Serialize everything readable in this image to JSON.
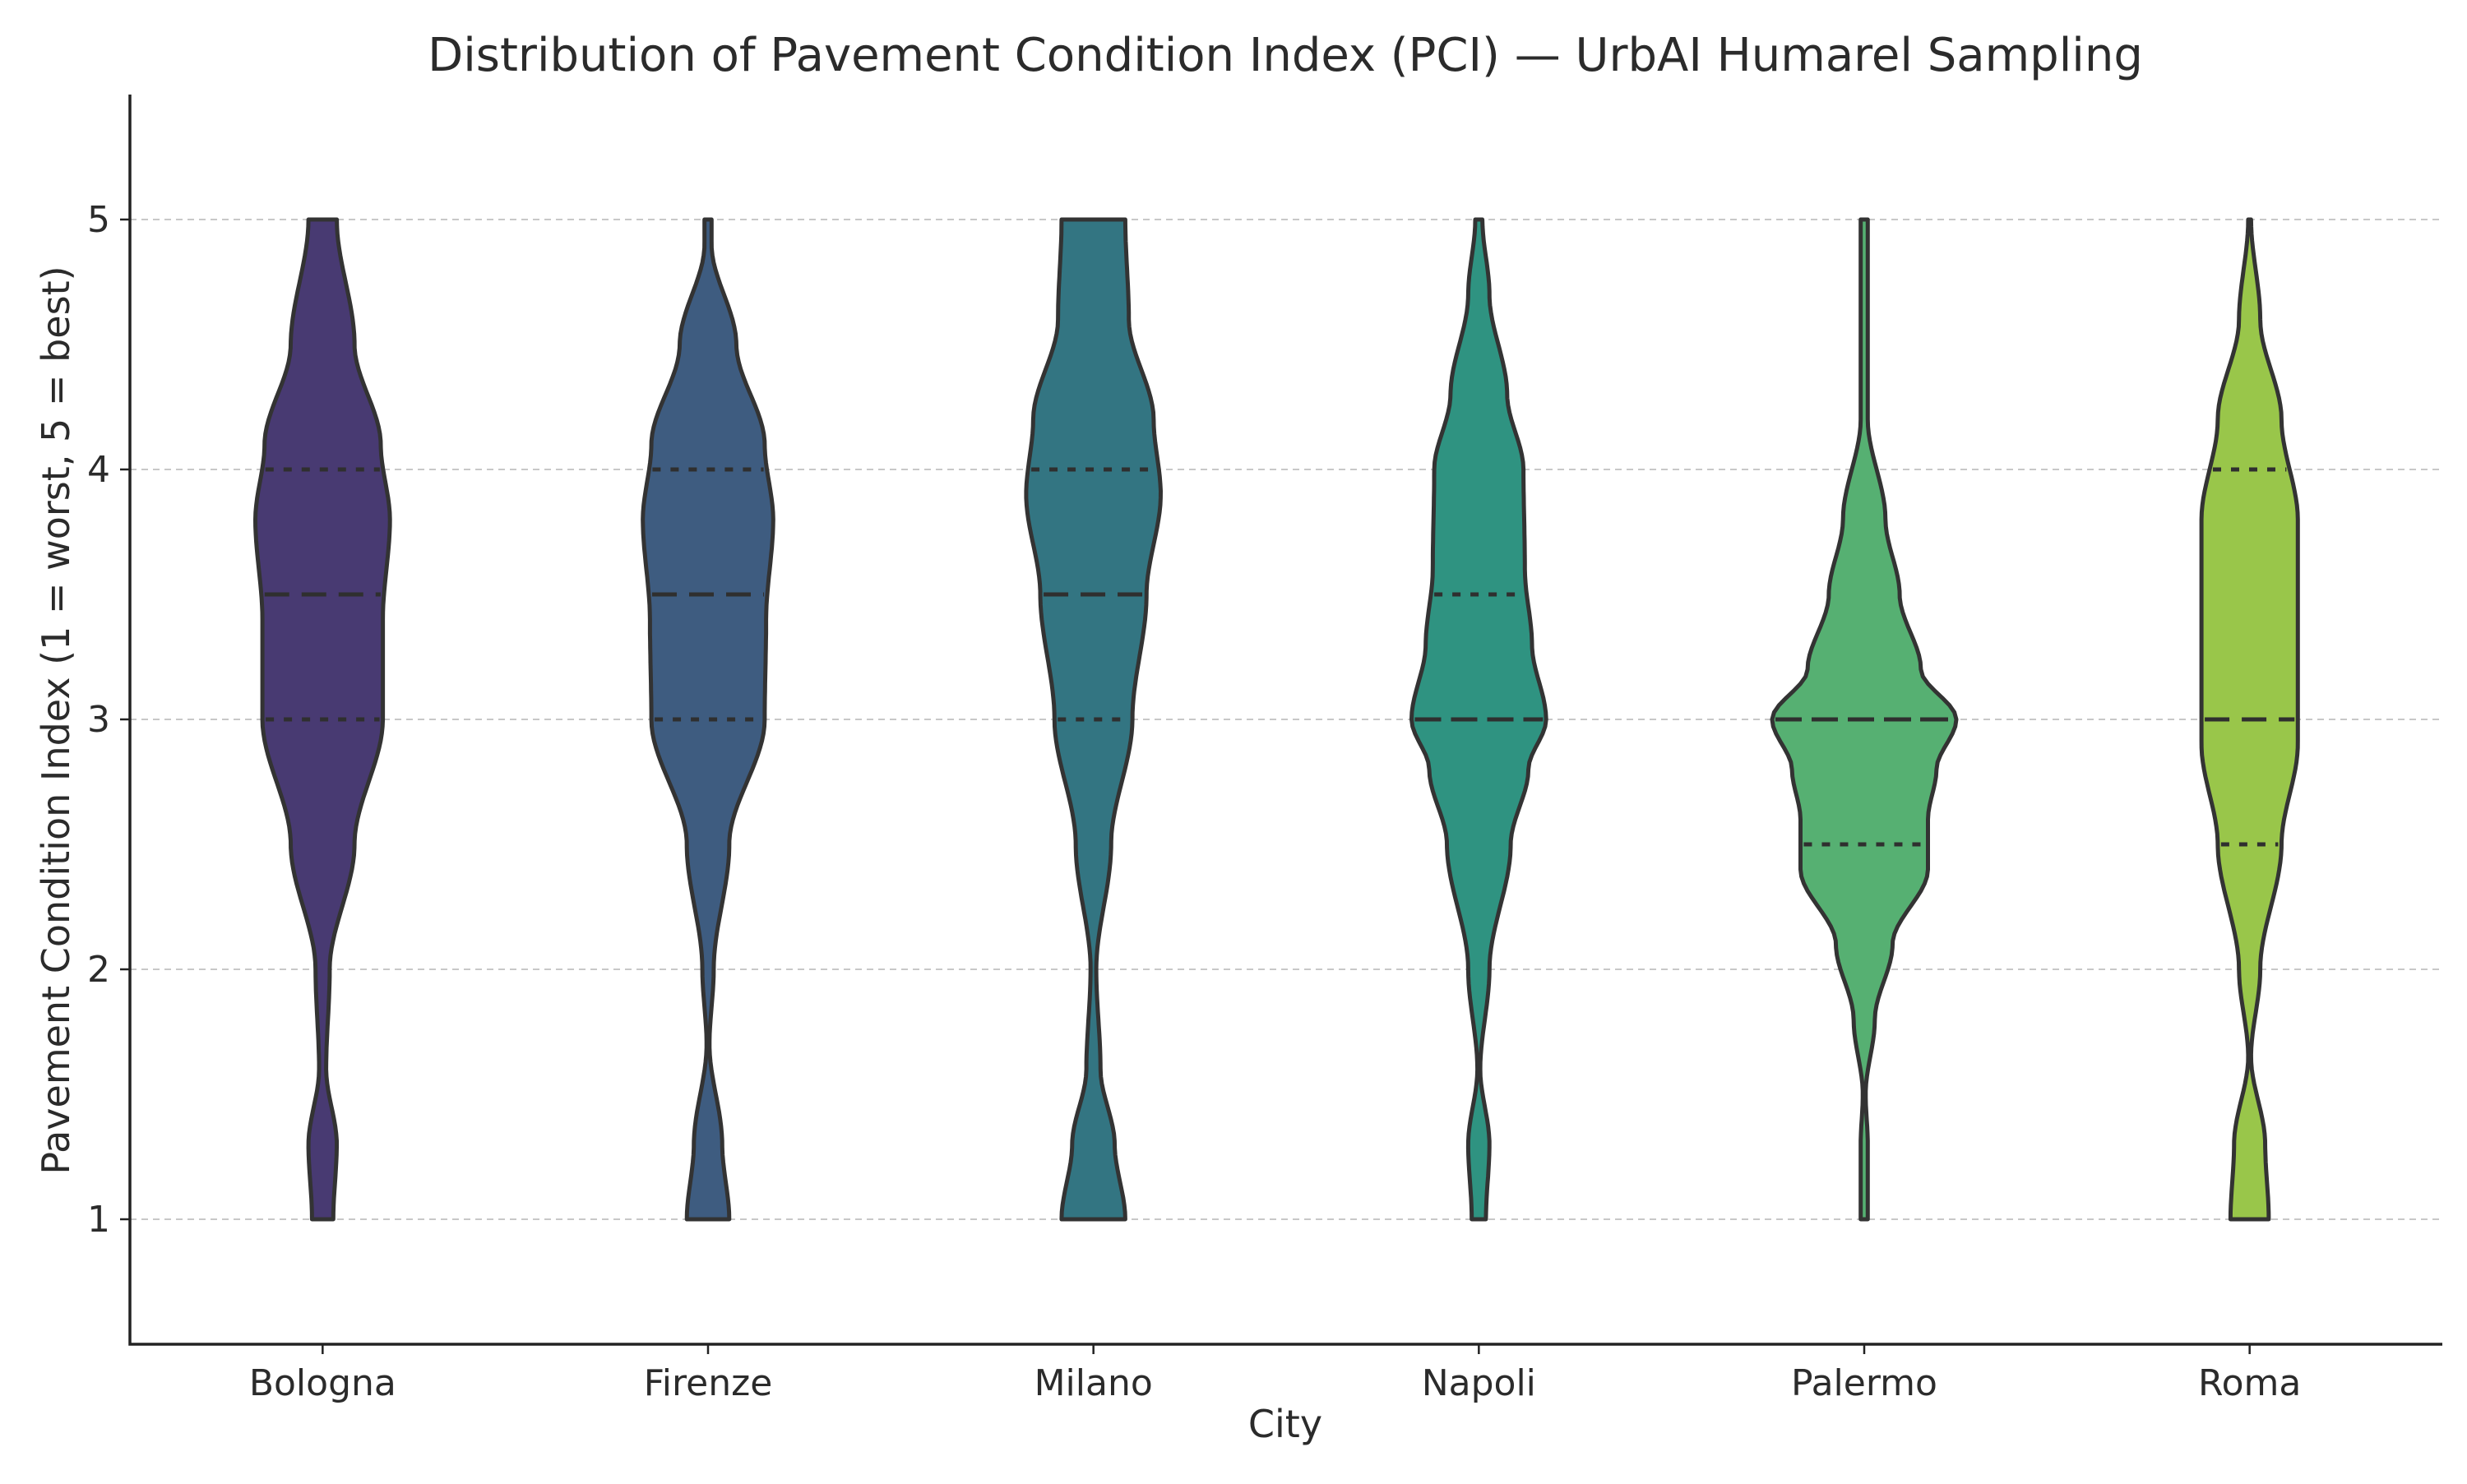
{
  "chart_data": {
    "type": "violin",
    "title": "Distribution of Pavement Condition Index (PCI) — UrbAI Humarel Sampling",
    "xlabel": "City",
    "ylabel": "Pavement Condition Index (1 = worst, 5 = best)",
    "ylim": [
      0.5,
      5.5
    ],
    "yticks": [
      "1",
      "2",
      "3",
      "4",
      "5"
    ],
    "grid": "y-dashed",
    "categories": [
      "Bologna",
      "Firenze",
      "Milano",
      "Napoli",
      "Palermo",
      "Roma"
    ],
    "colors": [
      "#483a72",
      "#3e5c80",
      "#337582",
      "#2f9381",
      "#56b072",
      "#99c64a"
    ],
    "series": [
      {
        "q1": 3.0,
        "median": 3.5,
        "q3": 4.0,
        "min": 1,
        "max": 5,
        "profile": [
          [
            1.0,
            0.15
          ],
          [
            1.3,
            0.2
          ],
          [
            1.6,
            0.05
          ],
          [
            2.0,
            0.1
          ],
          [
            2.5,
            0.45
          ],
          [
            3.0,
            0.85
          ],
          [
            3.4,
            0.85
          ],
          [
            3.8,
            0.95
          ],
          [
            4.1,
            0.82
          ],
          [
            4.5,
            0.45
          ],
          [
            5.0,
            0.2
          ]
        ]
      },
      {
        "q1": 3.0,
        "median": 3.5,
        "q3": 4.0,
        "min": 1,
        "max": 5,
        "profile": [
          [
            1.0,
            0.3
          ],
          [
            1.3,
            0.2
          ],
          [
            1.7,
            0.02
          ],
          [
            2.0,
            0.08
          ],
          [
            2.5,
            0.3
          ],
          [
            3.0,
            0.8
          ],
          [
            3.4,
            0.82
          ],
          [
            3.8,
            0.92
          ],
          [
            4.1,
            0.8
          ],
          [
            4.5,
            0.4
          ],
          [
            4.9,
            0.05
          ],
          [
            5.0,
            0.05
          ]
        ]
      },
      {
        "q1": 3.0,
        "median": 3.5,
        "q3": 4.0,
        "min": 1,
        "max": 5,
        "profile": [
          [
            1.0,
            0.45
          ],
          [
            1.3,
            0.3
          ],
          [
            1.6,
            0.1
          ],
          [
            2.0,
            0.04
          ],
          [
            2.5,
            0.25
          ],
          [
            3.0,
            0.55
          ],
          [
            3.5,
            0.75
          ],
          [
            3.9,
            0.95
          ],
          [
            4.2,
            0.85
          ],
          [
            4.6,
            0.5
          ],
          [
            5.0,
            0.45
          ]
        ]
      },
      {
        "q1": 3.0,
        "median": 3.0,
        "q3": 3.5,
        "min": 1,
        "max": 5,
        "profile": [
          [
            1.0,
            0.1
          ],
          [
            1.3,
            0.15
          ],
          [
            1.6,
            0.02
          ],
          [
            2.0,
            0.15
          ],
          [
            2.5,
            0.45
          ],
          [
            2.8,
            0.7
          ],
          [
            3.0,
            0.95
          ],
          [
            3.3,
            0.75
          ],
          [
            3.6,
            0.65
          ],
          [
            4.0,
            0.63
          ],
          [
            4.3,
            0.4
          ],
          [
            4.7,
            0.15
          ],
          [
            5.0,
            0.05
          ]
        ]
      },
      {
        "q1": 2.5,
        "median": 3.0,
        "q3": 3.0,
        "min": 1,
        "max": 5,
        "profile": [
          [
            1.0,
            0.05
          ],
          [
            1.3,
            0.05
          ],
          [
            1.5,
            0.02
          ],
          [
            1.8,
            0.15
          ],
          [
            2.1,
            0.4
          ],
          [
            2.4,
            0.9
          ],
          [
            2.6,
            0.9
          ],
          [
            2.8,
            1.02
          ],
          [
            3.0,
            1.3
          ],
          [
            3.2,
            0.8
          ],
          [
            3.5,
            0.5
          ],
          [
            3.8,
            0.3
          ],
          [
            4.2,
            0.05
          ],
          [
            4.6,
            0.05
          ],
          [
            5.0,
            0.05
          ]
        ]
      },
      {
        "q1": 2.5,
        "median": 3.0,
        "q3": 4.0,
        "min": 1,
        "max": 5,
        "profile": [
          [
            1.0,
            0.27
          ],
          [
            1.3,
            0.22
          ],
          [
            1.65,
            0.02
          ],
          [
            2.0,
            0.15
          ],
          [
            2.5,
            0.45
          ],
          [
            2.9,
            0.68
          ],
          [
            3.3,
            0.68
          ],
          [
            3.8,
            0.68
          ],
          [
            4.2,
            0.45
          ],
          [
            4.6,
            0.15
          ],
          [
            5.0,
            0.02
          ]
        ]
      }
    ]
  }
}
